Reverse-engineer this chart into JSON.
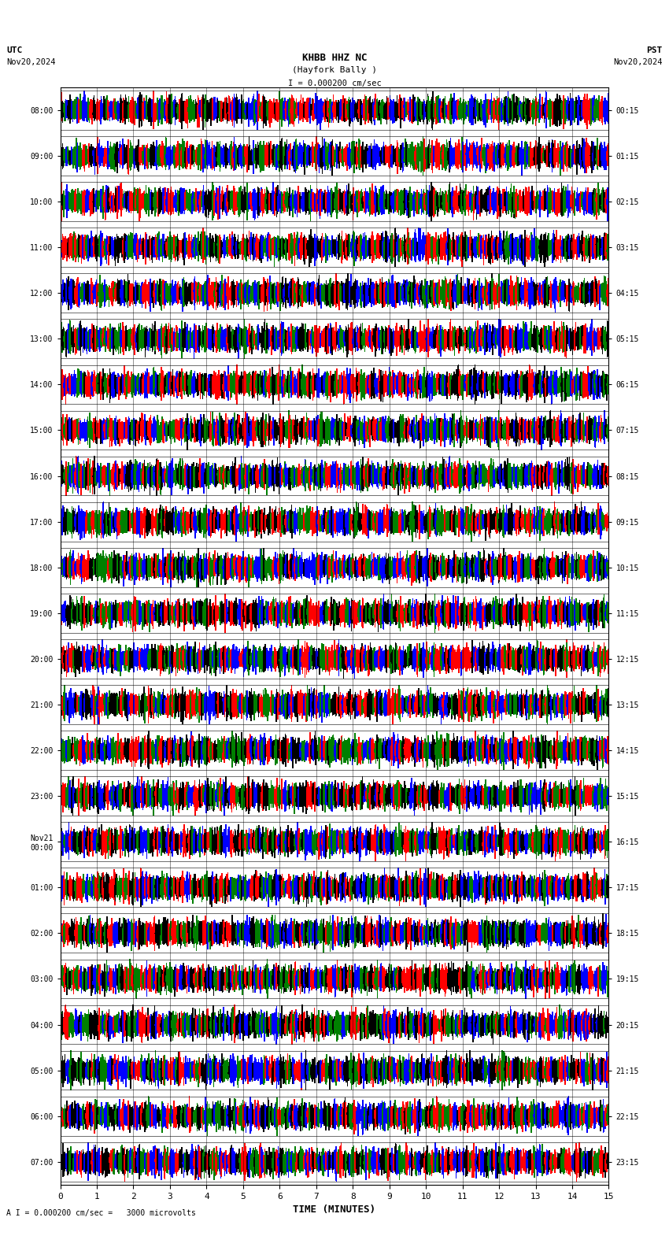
{
  "title_line1": "KHBB HHZ NC",
  "title_line2": "(Hayfork Bally )",
  "scale_label": "I = 0.000200 cm/sec",
  "bottom_label": "A I = 0.000200 cm/sec =   3000 microvolts",
  "utc_label": "UTC",
  "utc_date": "Nov20,2024",
  "pst_label": "PST",
  "pst_date": "Nov20,2024",
  "xlabel": "TIME (MINUTES)",
  "left_yticks_labels": [
    "08:00",
    "09:00",
    "10:00",
    "11:00",
    "12:00",
    "13:00",
    "14:00",
    "15:00",
    "16:00",
    "17:00",
    "18:00",
    "19:00",
    "20:00",
    "21:00",
    "22:00",
    "23:00",
    "Nov21\n00:00",
    "01:00",
    "02:00",
    "03:00",
    "04:00",
    "05:00",
    "06:00",
    "07:00"
  ],
  "right_yticks_labels": [
    "00:15",
    "01:15",
    "02:15",
    "03:15",
    "04:15",
    "05:15",
    "06:15",
    "07:15",
    "08:15",
    "09:15",
    "10:15",
    "11:15",
    "12:15",
    "13:15",
    "14:15",
    "15:15",
    "16:15",
    "17:15",
    "18:15",
    "19:15",
    "20:15",
    "21:15",
    "22:15",
    "23:15"
  ],
  "n_rows": 24,
  "minutes_per_row": 15,
  "bg_color": "white",
  "colors": [
    "blue",
    "red",
    "green",
    "black"
  ],
  "fig_width": 8.5,
  "fig_height": 15.84,
  "dpi": 100
}
